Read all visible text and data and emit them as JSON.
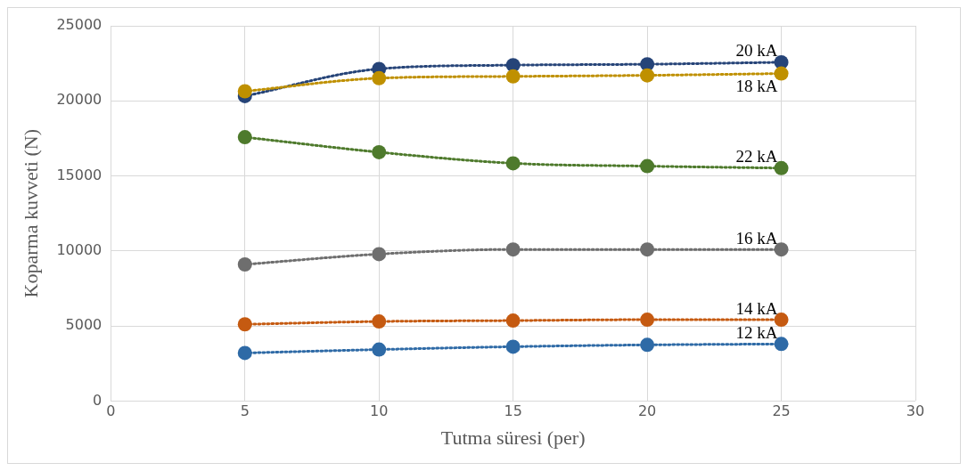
{
  "chart_data": {
    "type": "line",
    "xlabel": "Tutma süresi (per)",
    "ylabel": "Koparma kuvveti (N)",
    "x": [
      5,
      10,
      15,
      20,
      25
    ],
    "xlim": [
      0,
      30
    ],
    "xticks": [
      0,
      5,
      10,
      15,
      20,
      25,
      30
    ],
    "ylim": [
      0,
      25000
    ],
    "yticks": [
      0,
      5000,
      10000,
      15000,
      20000,
      25000
    ],
    "grid": true,
    "legend": false,
    "marker": "circle",
    "line_style": "dotted",
    "series": [
      {
        "name": "20 kA",
        "color": "#264478",
        "values": [
          20320,
          22130,
          22380,
          22440,
          22570
        ]
      },
      {
        "name": "18 kA",
        "color": "#bf9000",
        "values": [
          20640,
          21510,
          21630,
          21700,
          21820
        ]
      },
      {
        "name": "22 kA",
        "color": "#4e7a2c",
        "values": [
          17580,
          16580,
          15840,
          15650,
          15520
        ]
      },
      {
        "name": "16 kA",
        "color": "#6e6e6e",
        "values": [
          9100,
          9790,
          10100,
          10100,
          10100
        ]
      },
      {
        "name": "14 kA",
        "color": "#c55a11",
        "values": [
          5110,
          5300,
          5360,
          5420,
          5420
        ]
      },
      {
        "name": "12 kA",
        "color": "#2e6aa6",
        "values": [
          3200,
          3430,
          3620,
          3740,
          3800
        ]
      }
    ]
  }
}
